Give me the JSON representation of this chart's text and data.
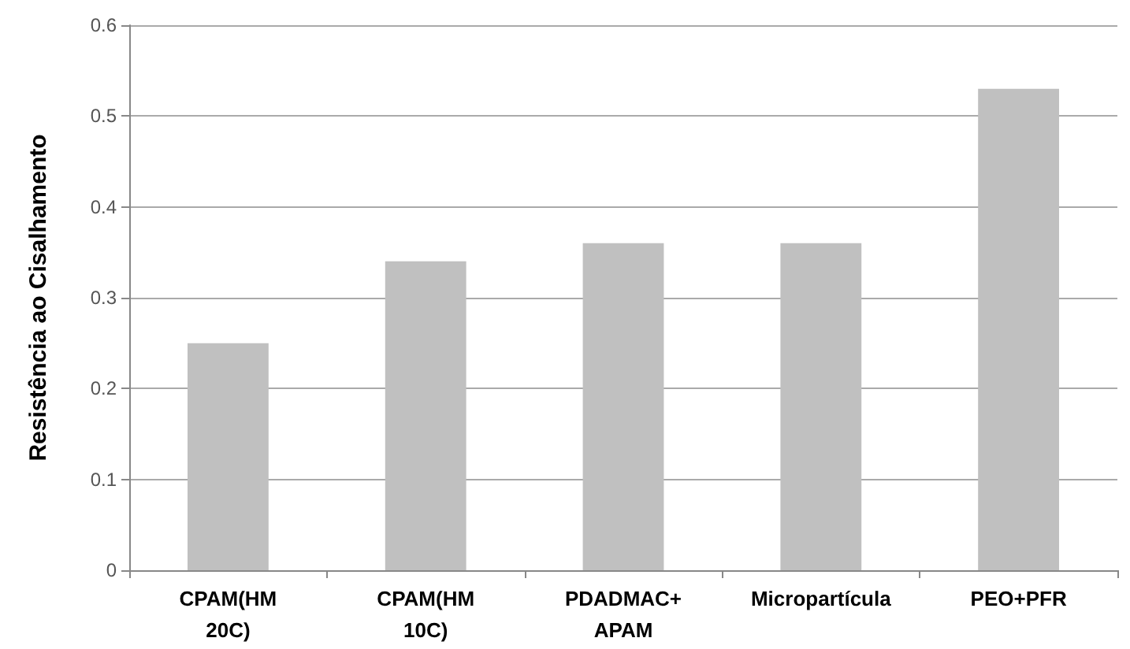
{
  "chart_data": {
    "type": "bar",
    "ylabel": "Resistência ao Cisalhamento",
    "categories": [
      "CPAM(HM\n20C)",
      "CPAM(HM\n10C)",
      "PDADMAC+\nAPAM",
      "Micropartícula",
      "PEO+PFR"
    ],
    "values": [
      0.25,
      0.34,
      0.36,
      0.36,
      0.53
    ],
    "color": "#c0c0c0",
    "ylim": [
      0,
      0.6
    ],
    "yticks": [
      0,
      0.1,
      0.2,
      0.3,
      0.4,
      0.5,
      0.6
    ],
    "grid": "y"
  }
}
